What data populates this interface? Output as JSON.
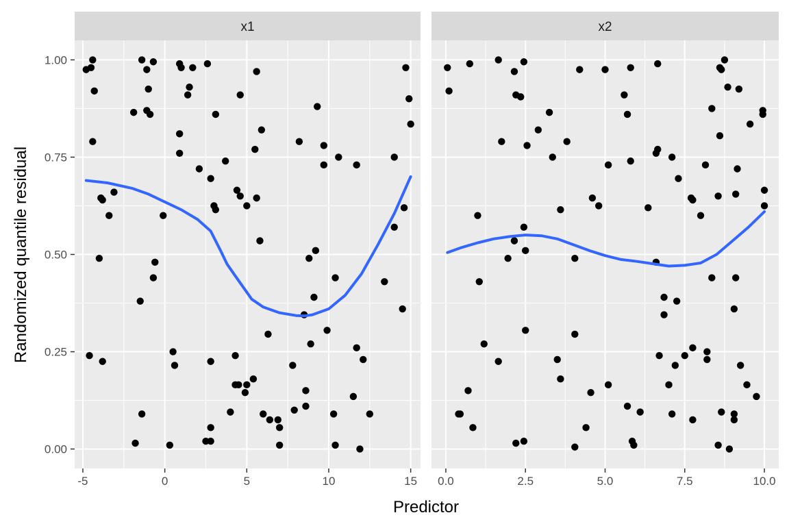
{
  "chart_data": {
    "type": "scatter",
    "xlabel": "Predictor",
    "ylabel": "Randomized quantile residual",
    "colors": {
      "points": "#000000",
      "smooth": "#3366FF",
      "panel_bg": "#EBEBEB",
      "strip_bg": "#D9D9D9",
      "grid": "#FFFFFF"
    },
    "grid": true,
    "ylim": [
      -0.05,
      1.05
    ],
    "yticks": [
      0,
      0.25,
      0.5,
      0.75,
      1
    ],
    "ytick_labels": [
      "0.00",
      "0.25",
      "0.50",
      "0.75",
      "1.00"
    ],
    "panels": [
      {
        "name": "x1",
        "xlim": [
          -5.5,
          15.6
        ],
        "xticks": [
          -5,
          0,
          5,
          10,
          15
        ],
        "xtick_labels": [
          "-5",
          "0",
          "5",
          "10",
          "15"
        ],
        "points": [
          [
            -4.8,
            0.975
          ],
          [
            -4.5,
            0.98
          ],
          [
            -4.4,
            1.0
          ],
          [
            -4.3,
            0.92
          ],
          [
            -4.4,
            0.79
          ],
          [
            -4.6,
            0.24
          ],
          [
            -3.8,
            0.64
          ],
          [
            -3.9,
            0.645
          ],
          [
            -3.4,
            0.6
          ],
          [
            -3.1,
            0.66
          ],
          [
            -4.0,
            0.49
          ],
          [
            -3.8,
            0.225
          ],
          [
            -1.9,
            0.865
          ],
          [
            -1.4,
            1.0
          ],
          [
            -1.1,
            0.975
          ],
          [
            -1.0,
            0.925
          ],
          [
            -0.7,
            0.995
          ],
          [
            -1.1,
            0.87
          ],
          [
            -0.9,
            0.86
          ],
          [
            -0.6,
            0.48
          ],
          [
            -0.7,
            0.44
          ],
          [
            -0.1,
            0.6
          ],
          [
            -1.5,
            0.38
          ],
          [
            -1.4,
            0.09
          ],
          [
            -1.8,
            0.015
          ],
          [
            0.3,
            0.01
          ],
          [
            0.9,
            0.99
          ],
          [
            1.0,
            0.98
          ],
          [
            1.7,
            0.98
          ],
          [
            2.6,
            0.99
          ],
          [
            1.5,
            0.93
          ],
          [
            1.4,
            0.91
          ],
          [
            0.9,
            0.81
          ],
          [
            0.9,
            0.76
          ],
          [
            3.1,
            0.86
          ],
          [
            2.1,
            0.72
          ],
          [
            2.8,
            0.695
          ],
          [
            3.0,
            0.625
          ],
          [
            3.1,
            0.615
          ],
          [
            3.7,
            0.74
          ],
          [
            0.5,
            0.25
          ],
          [
            0.6,
            0.215
          ],
          [
            2.8,
            0.225
          ],
          [
            2.8,
            0.055
          ],
          [
            2.5,
            0.02
          ],
          [
            2.8,
            0.02
          ],
          [
            5.6,
            0.97
          ],
          [
            4.6,
            0.91
          ],
          [
            5.9,
            0.82
          ],
          [
            5.5,
            0.77
          ],
          [
            4.4,
            0.665
          ],
          [
            4.6,
            0.65
          ],
          [
            5.6,
            0.645
          ],
          [
            5.0,
            0.625
          ],
          [
            5.8,
            0.535
          ],
          [
            4.3,
            0.24
          ],
          [
            4.3,
            0.165
          ],
          [
            4.5,
            0.165
          ],
          [
            5.0,
            0.165
          ],
          [
            5.4,
            0.18
          ],
          [
            4.9,
            0.145
          ],
          [
            4.0,
            0.095
          ],
          [
            6.0,
            0.09
          ],
          [
            6.4,
            0.075
          ],
          [
            6.9,
            0.075
          ],
          [
            7.0,
            0.055
          ],
          [
            7.0,
            0.01
          ],
          [
            6.3,
            0.295
          ],
          [
            8.2,
            0.79
          ],
          [
            9.3,
            0.88
          ],
          [
            9.7,
            0.78
          ],
          [
            9.7,
            0.73
          ],
          [
            10.6,
            0.75
          ],
          [
            11.7,
            0.73
          ],
          [
            9.2,
            0.51
          ],
          [
            8.8,
            0.49
          ],
          [
            8.5,
            0.345
          ],
          [
            9.1,
            0.39
          ],
          [
            10.4,
            0.44
          ],
          [
            9.9,
            0.305
          ],
          [
            8.9,
            0.27
          ],
          [
            7.8,
            0.215
          ],
          [
            8.6,
            0.15
          ],
          [
            8.6,
            0.11
          ],
          [
            7.9,
            0.1
          ],
          [
            10.3,
            0.09
          ],
          [
            10.4,
            0.01
          ],
          [
            11.5,
            0.135
          ],
          [
            11.7,
            0.26
          ],
          [
            12.1,
            0.23
          ],
          [
            12.5,
            0.09
          ],
          [
            11.9,
            0.0
          ],
          [
            14.7,
            0.98
          ],
          [
            14.9,
            0.9
          ],
          [
            15.0,
            0.835
          ],
          [
            14.0,
            0.75
          ],
          [
            14.6,
            0.62
          ],
          [
            14.0,
            0.57
          ],
          [
            13.4,
            0.43
          ],
          [
            14.5,
            0.36
          ]
        ],
        "smooth": [
          [
            -4.8,
            0.69
          ],
          [
            -3.5,
            0.684
          ],
          [
            -2,
            0.67
          ],
          [
            -1,
            0.655
          ],
          [
            0,
            0.635
          ],
          [
            1,
            0.615
          ],
          [
            2,
            0.59
          ],
          [
            2.8,
            0.56
          ],
          [
            3.4,
            0.51
          ],
          [
            3.8,
            0.475
          ],
          [
            4.3,
            0.445
          ],
          [
            4.8,
            0.415
          ],
          [
            5.3,
            0.385
          ],
          [
            6,
            0.365
          ],
          [
            7,
            0.35
          ],
          [
            8,
            0.343
          ],
          [
            8.5,
            0.342
          ],
          [
            9,
            0.345
          ],
          [
            10,
            0.36
          ],
          [
            11,
            0.395
          ],
          [
            12,
            0.45
          ],
          [
            13,
            0.525
          ],
          [
            14,
            0.605
          ],
          [
            15,
            0.7
          ]
        ]
      },
      {
        "name": "x2",
        "xlim": [
          -0.45,
          10.45
        ],
        "xticks": [
          0,
          2.5,
          5,
          7.5,
          10
        ],
        "xtick_labels": [
          "0.0",
          "2.5",
          "5.0",
          "7.5",
          "10.0"
        ],
        "points": [
          [
            0.05,
            0.98
          ],
          [
            0.1,
            0.92
          ],
          [
            0.75,
            0.99
          ],
          [
            1.65,
            1.0
          ],
          [
            2.15,
            0.97
          ],
          [
            2.45,
            0.995
          ],
          [
            2.2,
            0.91
          ],
          [
            2.35,
            0.905
          ],
          [
            1.75,
            0.79
          ],
          [
            2.55,
            0.78
          ],
          [
            2.9,
            0.82
          ],
          [
            3.25,
            0.865
          ],
          [
            3.35,
            0.75
          ],
          [
            3.8,
            0.79
          ],
          [
            1.0,
            0.6
          ],
          [
            1.05,
            0.43
          ],
          [
            1.2,
            0.27
          ],
          [
            1.95,
            0.49
          ],
          [
            2.15,
            0.535
          ],
          [
            2.45,
            0.57
          ],
          [
            2.5,
            0.51
          ],
          [
            0.4,
            0.09
          ],
          [
            0.45,
            0.09
          ],
          [
            0.7,
            0.15
          ],
          [
            0.85,
            0.055
          ],
          [
            1.65,
            0.225
          ],
          [
            2.2,
            0.015
          ],
          [
            2.45,
            0.02
          ],
          [
            2.5,
            0.305
          ],
          [
            4.2,
            0.975
          ],
          [
            5.0,
            0.975
          ],
          [
            5.6,
            0.91
          ],
          [
            5.8,
            0.98
          ],
          [
            5.7,
            0.86
          ],
          [
            5.1,
            0.73
          ],
          [
            5.8,
            0.74
          ],
          [
            6.65,
            0.99
          ],
          [
            4.6,
            0.645
          ],
          [
            4.8,
            0.625
          ],
          [
            3.6,
            0.615
          ],
          [
            6.35,
            0.62
          ],
          [
            4.05,
            0.49
          ],
          [
            3.5,
            0.23
          ],
          [
            3.6,
            0.18
          ],
          [
            4.05,
            0.295
          ],
          [
            4.4,
            0.055
          ],
          [
            4.55,
            0.145
          ],
          [
            5.1,
            0.165
          ],
          [
            4.05,
            0.005
          ],
          [
            5.7,
            0.11
          ],
          [
            5.85,
            0.02
          ],
          [
            5.9,
            0.01
          ],
          [
            6.1,
            0.095
          ],
          [
            6.6,
            0.76
          ],
          [
            6.65,
            0.77
          ],
          [
            7.1,
            0.75
          ],
          [
            7.3,
            0.695
          ],
          [
            7.7,
            0.645
          ],
          [
            7.75,
            0.64
          ],
          [
            8.0,
            0.6
          ],
          [
            8.15,
            0.73
          ],
          [
            6.6,
            0.48
          ],
          [
            6.85,
            0.39
          ],
          [
            6.85,
            0.345
          ],
          [
            7.25,
            0.38
          ],
          [
            6.7,
            0.24
          ],
          [
            7.0,
            0.165
          ],
          [
            7.2,
            0.215
          ],
          [
            7.5,
            0.24
          ],
          [
            7.75,
            0.26
          ],
          [
            8.2,
            0.25
          ],
          [
            8.2,
            0.23
          ],
          [
            7.1,
            0.09
          ],
          [
            7.75,
            0.075
          ],
          [
            8.35,
            0.875
          ],
          [
            8.6,
            0.98
          ],
          [
            8.65,
            0.975
          ],
          [
            8.75,
            1.0
          ],
          [
            8.85,
            0.93
          ],
          [
            9.2,
            0.925
          ],
          [
            9.55,
            0.835
          ],
          [
            9.95,
            0.87
          ],
          [
            9.95,
            0.86
          ],
          [
            8.6,
            0.805
          ],
          [
            9.15,
            0.72
          ],
          [
            10.0,
            0.665
          ],
          [
            9.1,
            0.655
          ],
          [
            8.55,
            0.65
          ],
          [
            10.0,
            0.625
          ],
          [
            8.35,
            0.44
          ],
          [
            9.1,
            0.44
          ],
          [
            9.05,
            0.36
          ],
          [
            9.25,
            0.215
          ],
          [
            9.45,
            0.165
          ],
          [
            9.75,
            0.135
          ],
          [
            8.65,
            0.095
          ],
          [
            9.05,
            0.09
          ],
          [
            9.05,
            0.075
          ],
          [
            8.55,
            0.01
          ],
          [
            8.9,
            0.0
          ]
        ],
        "smooth": [
          [
            0.05,
            0.505
          ],
          [
            0.5,
            0.518
          ],
          [
            1,
            0.53
          ],
          [
            1.5,
            0.54
          ],
          [
            2,
            0.546
          ],
          [
            2.5,
            0.55
          ],
          [
            3,
            0.548
          ],
          [
            3.5,
            0.54
          ],
          [
            4,
            0.525
          ],
          [
            4.5,
            0.51
          ],
          [
            5,
            0.497
          ],
          [
            5.5,
            0.487
          ],
          [
            6,
            0.482
          ],
          [
            6.5,
            0.476
          ],
          [
            7,
            0.47
          ],
          [
            7.5,
            0.472
          ],
          [
            8,
            0.478
          ],
          [
            8.5,
            0.5
          ],
          [
            9,
            0.535
          ],
          [
            9.5,
            0.57
          ],
          [
            10,
            0.61
          ]
        ]
      }
    ]
  }
}
